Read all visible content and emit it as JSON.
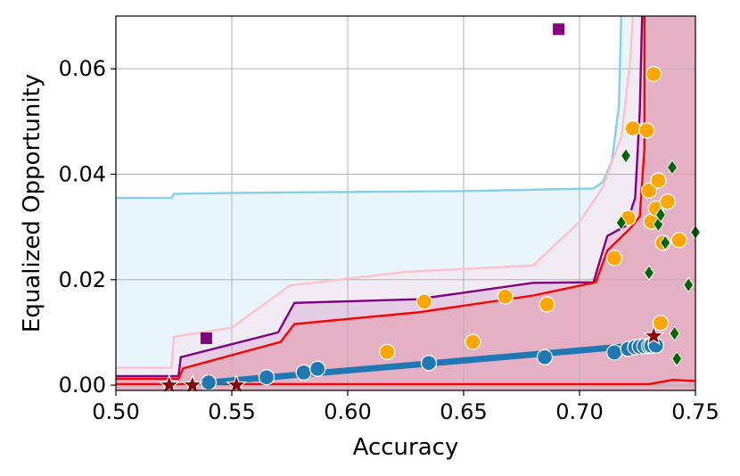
{
  "chart_data": {
    "type": "scatter",
    "xlabel": "Accuracy",
    "ylabel": "Equalized Opportunity",
    "xlim": [
      0.5,
      0.75
    ],
    "ylim": [
      -0.001,
      0.07
    ],
    "xticks": [
      "0.50",
      "0.55",
      "0.60",
      "0.65",
      "0.70",
      "0.75"
    ],
    "yticks": [
      "0.00",
      "0.02",
      "0.04",
      "0.06"
    ],
    "xtick_values": [
      0.5,
      0.55,
      0.6,
      0.65,
      0.7,
      0.75
    ],
    "ytick_values": [
      0.0,
      0.02,
      0.04,
      0.06
    ],
    "grid": true,
    "colors": {
      "lightblue_line": "#87ceeb",
      "lightblue_fill": "#e8f5fb",
      "pink_line": "#ffc0cb",
      "pink_fill": "#f1ecf3",
      "purple_line": "#800080",
      "purple_fill": "#e4cde4",
      "red_line": "#ff0000",
      "red_fill": "#e6b0c4",
      "blue": "#1f77b4",
      "orange": "#ffa500",
      "green": "#006400",
      "darkred": "#8b0000",
      "square": "#800080"
    },
    "frontiers": [
      {
        "key": "lightblue",
        "points": [
          [
            0.5,
            0.0355
          ],
          [
            0.524,
            0.0355
          ],
          [
            0.525,
            0.0363
          ],
          [
            0.56,
            0.0365
          ],
          [
            0.65,
            0.0368
          ],
          [
            0.706,
            0.0373
          ],
          [
            0.71,
            0.0385
          ],
          [
            0.714,
            0.0425
          ],
          [
            0.717,
            0.053
          ],
          [
            0.718,
            0.07
          ]
        ]
      },
      {
        "key": "pink",
        "points": [
          [
            0.5,
            0.0033
          ],
          [
            0.524,
            0.0033
          ],
          [
            0.525,
            0.0092
          ],
          [
            0.55,
            0.0109
          ],
          [
            0.575,
            0.0189
          ],
          [
            0.625,
            0.0215
          ],
          [
            0.68,
            0.0227
          ],
          [
            0.7,
            0.031
          ],
          [
            0.71,
            0.0375
          ],
          [
            0.718,
            0.047
          ],
          [
            0.722,
            0.062
          ],
          [
            0.723,
            0.07
          ]
        ]
      },
      {
        "key": "purple",
        "points": [
          [
            0.5,
            0.0017
          ],
          [
            0.527,
            0.0017
          ],
          [
            0.528,
            0.0053
          ],
          [
            0.57,
            0.01
          ],
          [
            0.577,
            0.0156
          ],
          [
            0.63,
            0.0163
          ],
          [
            0.68,
            0.0194
          ],
          [
            0.706,
            0.0195
          ],
          [
            0.712,
            0.0283
          ],
          [
            0.72,
            0.0302
          ],
          [
            0.724,
            0.0355
          ],
          [
            0.726,
            0.052
          ],
          [
            0.727,
            0.07
          ]
        ]
      },
      {
        "key": "red",
        "points": [
          [
            0.5,
            0.0012
          ],
          [
            0.527,
            0.0012
          ],
          [
            0.529,
            0.0032
          ],
          [
            0.571,
            0.0082
          ],
          [
            0.577,
            0.0116
          ],
          [
            0.63,
            0.0138
          ],
          [
            0.68,
            0.017
          ],
          [
            0.707,
            0.0195
          ],
          [
            0.712,
            0.0255
          ],
          [
            0.722,
            0.0298
          ],
          [
            0.726,
            0.032
          ],
          [
            0.728,
            0.045
          ],
          [
            0.728,
            0.07
          ]
        ]
      }
    ],
    "red_lower_line": [
      [
        0.5,
        0.0002
      ],
      [
        0.73,
        0.0002
      ],
      [
        0.74,
        0.001
      ],
      [
        0.75,
        0.0008
      ]
    ],
    "series": [
      {
        "marker": "circle",
        "color_key": "blue",
        "trend": [
          [
            0.54,
            0.0005
          ],
          [
            0.732,
            0.0078
          ]
        ],
        "points": [
          [
            0.54,
            0.0005
          ],
          [
            0.565,
            0.0015
          ],
          [
            0.581,
            0.0024
          ],
          [
            0.587,
            0.0031
          ],
          [
            0.635,
            0.0042
          ],
          [
            0.685,
            0.0053
          ],
          [
            0.715,
            0.0062
          ],
          [
            0.721,
            0.0069
          ],
          [
            0.724,
            0.0072
          ],
          [
            0.726,
            0.0073
          ],
          [
            0.728,
            0.0074
          ],
          [
            0.73,
            0.0074
          ],
          [
            0.731,
            0.0075
          ],
          [
            0.733,
            0.0075
          ]
        ]
      },
      {
        "marker": "circle",
        "color_key": "orange",
        "points": [
          [
            0.617,
            0.0063
          ],
          [
            0.633,
            0.0158
          ],
          [
            0.654,
            0.0082
          ],
          [
            0.668,
            0.0168
          ],
          [
            0.686,
            0.0153
          ],
          [
            0.715,
            0.0241
          ],
          [
            0.721,
            0.0317
          ],
          [
            0.723,
            0.0487
          ],
          [
            0.729,
            0.0483
          ],
          [
            0.73,
            0.0369
          ],
          [
            0.731,
            0.031
          ],
          [
            0.732,
            0.059
          ],
          [
            0.733,
            0.0335
          ],
          [
            0.734,
            0.0388
          ],
          [
            0.735,
            0.0118
          ],
          [
            0.736,
            0.027
          ],
          [
            0.738,
            0.0348
          ],
          [
            0.743,
            0.0275
          ]
        ]
      },
      {
        "marker": "diamond",
        "color_key": "green",
        "points": [
          [
            0.718,
            0.0308
          ],
          [
            0.72,
            0.0435
          ],
          [
            0.73,
            0.0213
          ],
          [
            0.734,
            0.0305
          ],
          [
            0.735,
            0.0323
          ],
          [
            0.737,
            0.027
          ],
          [
            0.74,
            0.0413
          ],
          [
            0.741,
            0.0098
          ],
          [
            0.742,
            0.005
          ],
          [
            0.747,
            0.019
          ],
          [
            0.75,
            0.029
          ]
        ]
      },
      {
        "marker": "star",
        "color_key": "darkred",
        "points": [
          [
            0.523,
            0.0
          ],
          [
            0.533,
            0.0
          ],
          [
            0.552,
            0.0
          ],
          [
            0.732,
            0.0093
          ]
        ]
      },
      {
        "marker": "square",
        "color_key": "square",
        "points": [
          [
            0.539,
            0.0089
          ],
          [
            0.691,
            0.0675
          ]
        ]
      }
    ]
  }
}
